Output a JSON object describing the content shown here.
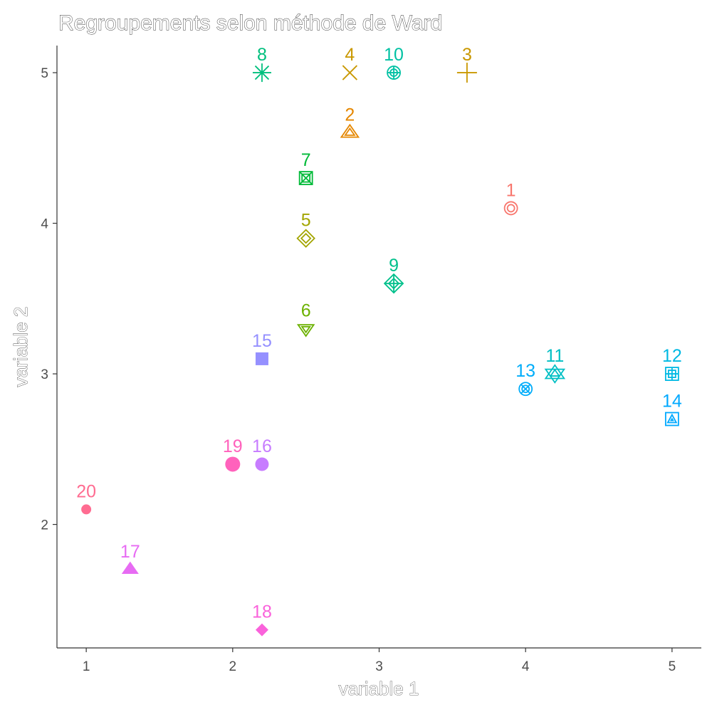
{
  "chart_data": {
    "type": "scatter",
    "title": "Regroupements selon méthode de Ward",
    "xlabel": "variable 1",
    "ylabel": "variable 2",
    "xlim": [
      0.8,
      5.2
    ],
    "ylim": [
      1.18,
      5.18
    ],
    "x_ticks": [
      "1",
      "2",
      "3",
      "4",
      "5"
    ],
    "y_ticks": [
      "2",
      "3",
      "4",
      "5"
    ],
    "grid": false,
    "legend": "none",
    "points": [
      {
        "label": "1",
        "x": 3.9,
        "y": 4.1,
        "shape": "circle-dot",
        "color": "#F8766D"
      },
      {
        "label": "2",
        "x": 2.8,
        "y": 4.6,
        "shape": "triangle-double",
        "color": "#E58700"
      },
      {
        "label": "3",
        "x": 3.6,
        "y": 5.0,
        "shape": "plus",
        "color": "#C99800"
      },
      {
        "label": "4",
        "x": 2.8,
        "y": 5.0,
        "shape": "cross",
        "color": "#C99800"
      },
      {
        "label": "5",
        "x": 2.5,
        "y": 3.9,
        "shape": "diamond-double",
        "color": "#A3A500"
      },
      {
        "label": "6",
        "x": 2.5,
        "y": 3.3,
        "shape": "triangle-down-double",
        "color": "#6BB100"
      },
      {
        "label": "7",
        "x": 2.5,
        "y": 4.3,
        "shape": "square-x",
        "color": "#00BA38"
      },
      {
        "label": "8",
        "x": 2.2,
        "y": 5.0,
        "shape": "asterisk",
        "color": "#00BF7D"
      },
      {
        "label": "9",
        "x": 3.1,
        "y": 3.6,
        "shape": "diamond-plus",
        "color": "#00C08B"
      },
      {
        "label": "10",
        "x": 3.1,
        "y": 5.0,
        "shape": "circle-plus",
        "color": "#00C1A3"
      },
      {
        "label": "11",
        "x": 4.2,
        "y": 3.0,
        "shape": "star-of-david",
        "color": "#00BFC4"
      },
      {
        "label": "12",
        "x": 5.0,
        "y": 3.0,
        "shape": "square-plus",
        "color": "#00B9E3"
      },
      {
        "label": "13",
        "x": 4.0,
        "y": 2.9,
        "shape": "circle-x",
        "color": "#00ADFA"
      },
      {
        "label": "14",
        "x": 5.0,
        "y": 2.7,
        "shape": "square-triangle",
        "color": "#00A9FF"
      },
      {
        "label": "15",
        "x": 2.2,
        "y": 3.1,
        "shape": "square-filled",
        "color": "#9590FF"
      },
      {
        "label": "16",
        "x": 2.2,
        "y": 2.4,
        "shape": "circle-filled",
        "color": "#C77CFF"
      },
      {
        "label": "17",
        "x": 1.3,
        "y": 1.7,
        "shape": "triangle-filled",
        "color": "#E76BF3"
      },
      {
        "label": "18",
        "x": 2.2,
        "y": 1.3,
        "shape": "diamond-filled",
        "color": "#FA62DB"
      },
      {
        "label": "19",
        "x": 2.0,
        "y": 2.4,
        "shape": "circle-filled-large",
        "color": "#FF62BC"
      },
      {
        "label": "20",
        "x": 1.0,
        "y": 2.1,
        "shape": "circle-filled-small",
        "color": "#FF6C91"
      }
    ]
  }
}
